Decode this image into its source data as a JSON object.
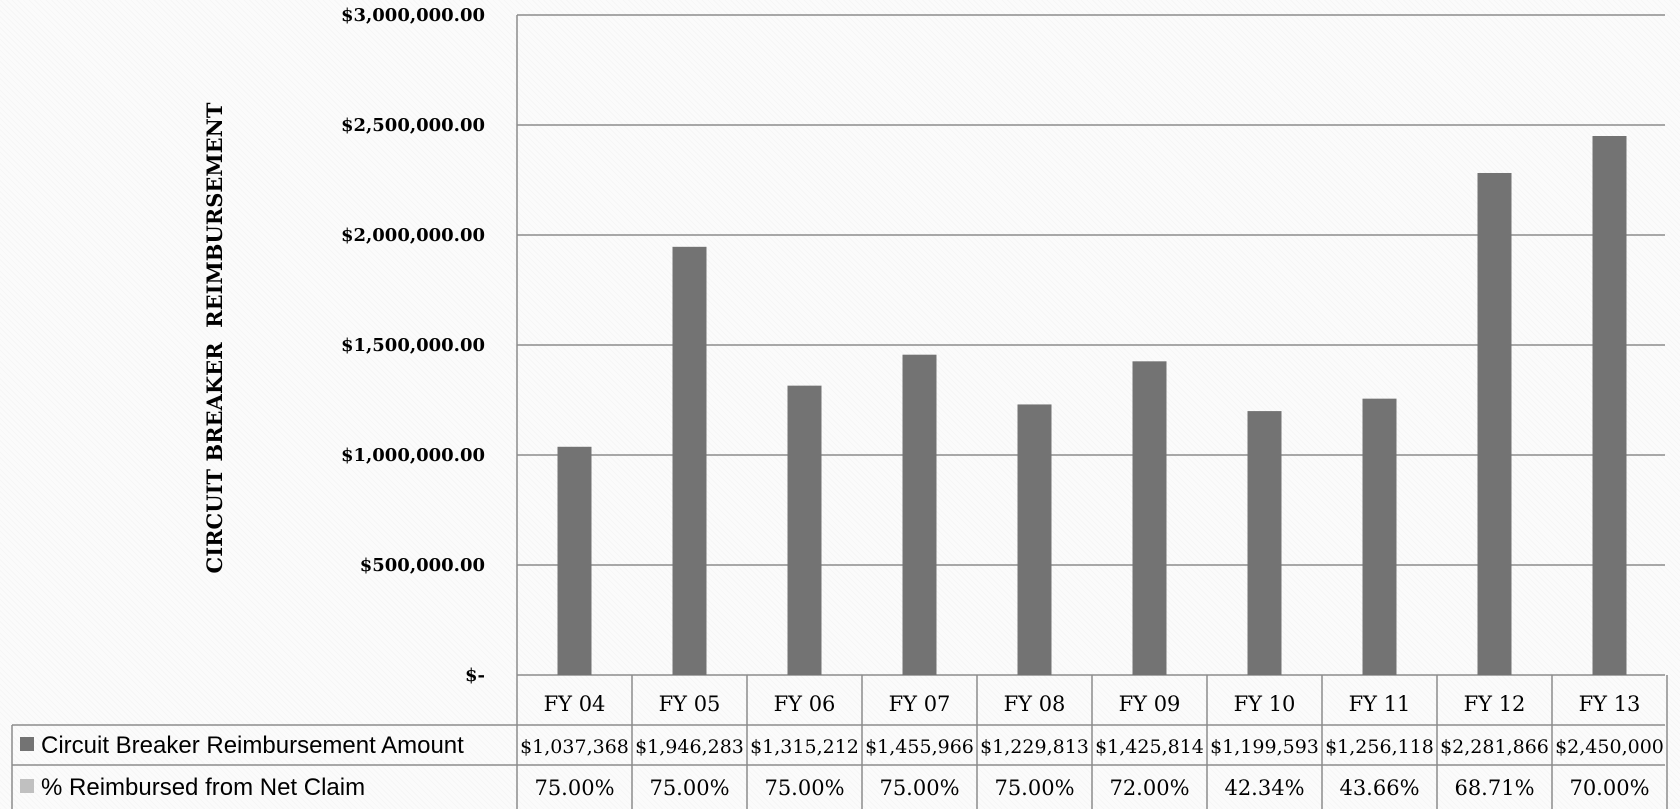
{
  "chart_data": {
    "type": "bar",
    "ylabel": "CIRCUIT BREAKER  REIMBURSEMENT",
    "ylim": [
      0,
      3000000
    ],
    "yticks": [
      {
        "value": 3000000,
        "label": "$3,000,000.00"
      },
      {
        "value": 2500000,
        "label": "$2,500,000.00"
      },
      {
        "value": 2000000,
        "label": "$2,000,000.00"
      },
      {
        "value": 1500000,
        "label": "$1,500,000.00"
      },
      {
        "value": 1000000,
        "label": "$1,000,000.00"
      },
      {
        "value": 500000,
        "label": "$500,000.00"
      },
      {
        "value": 0,
        "label": "$-"
      }
    ],
    "grid": true,
    "categories": [
      "FY 04",
      "FY 05",
      "FY 06",
      "FY 07",
      "FY 08",
      "FY 09",
      "FY 10",
      "FY 11",
      "FY 12",
      "FY 13"
    ],
    "series": [
      {
        "name": "Circuit Breaker Reimbursement Amount",
        "values": [
          1037368,
          1946283,
          1315212,
          1455966,
          1229813,
          1425814,
          1199593,
          1256118,
          2281866,
          2450000
        ],
        "labels": [
          "$1,037,368",
          "$1,946,283",
          "$1,315,212",
          "$1,455,966",
          "$1,229,813",
          "$1,425,814",
          "$1,199,593",
          "$1,256,118",
          "$2,281,866",
          "$2,450,000"
        ],
        "color": "#737373"
      },
      {
        "name": "% Reimbursed from Net Claim",
        "values": [
          75.0,
          75.0,
          75.0,
          75.0,
          75.0,
          72.0,
          42.34,
          43.66,
          68.71,
          70.0
        ],
        "labels": [
          "75.00%",
          "75.00%",
          "75.00%",
          "75.00%",
          "75.00%",
          "72.00%",
          "42.34%",
          "43.66%",
          "68.71%",
          "70.00%"
        ],
        "color": "#c0c0c0"
      }
    ],
    "legend": "data-table"
  }
}
